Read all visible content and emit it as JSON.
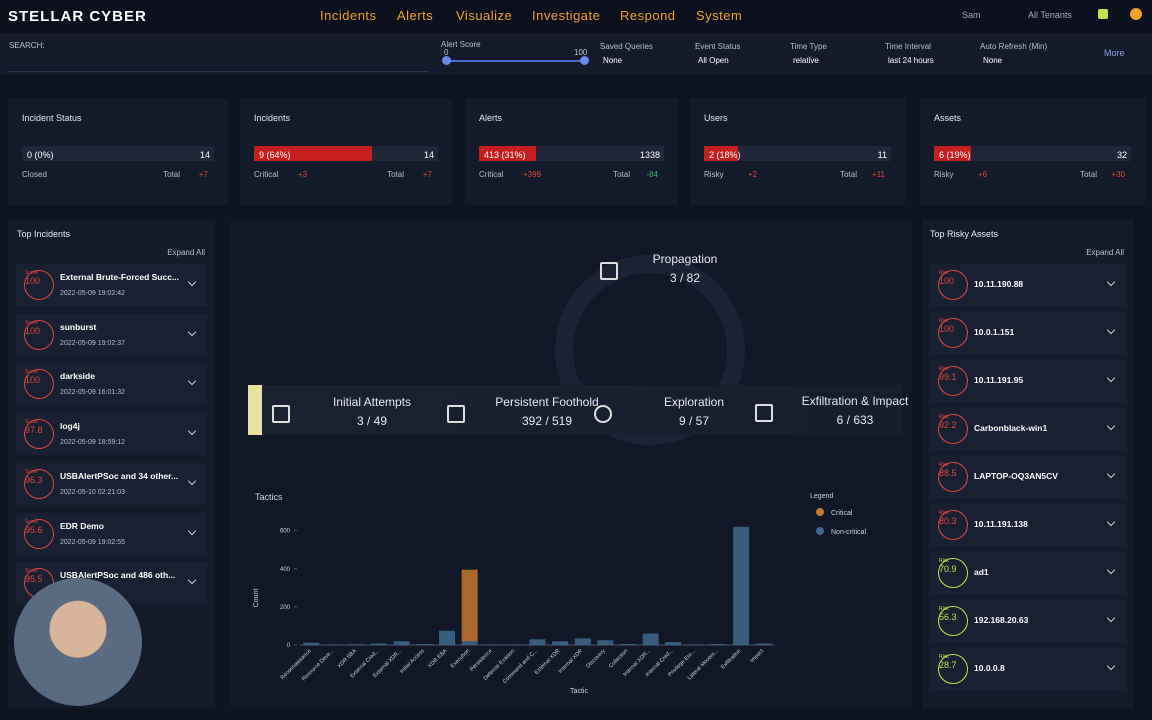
{
  "nav": {
    "logo": "STELLAR CYBER",
    "menu": [
      "Incidents",
      "Alerts",
      "Visualize",
      "Investigate",
      "Respond",
      "System"
    ],
    "user": "Sam",
    "tenants": "All Tenants"
  },
  "filters": {
    "search_label": "SEARCH:",
    "alert_score": {
      "label": "Alert Score",
      "min": 0,
      "max": 100
    },
    "selects": [
      {
        "label": "Saved Queries",
        "value": "None"
      },
      {
        "label": "Event Status",
        "value": "All Open"
      },
      {
        "label": "Time Type",
        "value": "relative"
      },
      {
        "label": "Time Interval",
        "value": "last 24 hours"
      },
      {
        "label": "Auto Refresh (Min)",
        "value": "None"
      }
    ],
    "more": "More"
  },
  "cards": [
    {
      "title": "Incident Status",
      "value_label": "0 (0%)",
      "percent": 0,
      "total": 14,
      "left_label": "Closed",
      "left_delta": null,
      "left_delta_color": null,
      "total_label": "Total",
      "total_delta": "+7",
      "total_delta_color": "#e2483d"
    },
    {
      "title": "Incidents",
      "value_label": "9 (64%)",
      "percent": 64,
      "total": 14,
      "left_label": "Critical",
      "left_delta": "+3",
      "left_delta_color": "#e2483d",
      "total_label": "Total",
      "total_delta": "+7",
      "total_delta_color": "#e2483d"
    },
    {
      "title": "Alerts",
      "value_label": "413 (31%)",
      "percent": 31,
      "total": 1338,
      "left_label": "Critical",
      "left_delta": "+399",
      "left_delta_color": "#e2483d",
      "total_label": "Total",
      "total_delta": "-84",
      "total_delta_color": "#3cb371"
    },
    {
      "title": "Users",
      "value_label": "2 (18%)",
      "percent": 18,
      "total": 11,
      "left_label": "Risky",
      "left_delta": "+2",
      "left_delta_color": "#e2483d",
      "total_label": "Total",
      "total_delta": "+11",
      "total_delta_color": "#e2483d"
    },
    {
      "title": "Assets",
      "value_label": "6 (19%)",
      "percent": 19,
      "total": 32,
      "left_label": "Risky",
      "left_delta": "+6",
      "left_delta_color": "#e2483d",
      "total_label": "Total",
      "total_delta": "+30",
      "total_delta_color": "#e2483d"
    }
  ],
  "top_incidents": {
    "title": "Top Incidents",
    "expand": "Expand All",
    "score_label": "Score",
    "items": [
      {
        "score": 100,
        "name": "External Brute-Forced Succ...",
        "date": "2022-05-09 19:02:42"
      },
      {
        "score": 100,
        "name": "sunburst",
        "date": "2022-05-09 19:02:37"
      },
      {
        "score": 100,
        "name": "darkside",
        "date": "2022-05-09 16:01:32"
      },
      {
        "score": 97.8,
        "name": "log4j",
        "date": "2022-05-09 18:59:12"
      },
      {
        "score": 96.3,
        "name": "USBAlertPSoc and 34 other...",
        "date": "2022-05-10 02:21:03"
      },
      {
        "score": 95.6,
        "name": "EDR Demo",
        "date": "2022-05-09 19:02:55"
      },
      {
        "score": 95.5,
        "name": "USBAlertPSoc and 486 oth...",
        "date": null
      }
    ]
  },
  "killchain": {
    "stages": [
      {
        "name": "Propagation",
        "count": "3 / 82"
      },
      {
        "name": "Initial Attempts",
        "count": "3 / 49"
      },
      {
        "name": "Persistent Foothold",
        "count": "392 / 519"
      },
      {
        "name": "Exploration",
        "count": "9 / 57"
      },
      {
        "name": "Exfiltration & Impact",
        "count": "6 / 633"
      }
    ]
  },
  "chart_data": {
    "type": "bar",
    "title": "Tactics",
    "x_label": "Tactic",
    "y_label": "Count",
    "legend_title": "Legend",
    "categories": [
      "Reconnaissance",
      "Resource Deve...",
      "XDR SBA",
      "External Cred...",
      "External XDR...",
      "Initial Access",
      "XDR EBA",
      "Execution",
      "Persistence",
      "Defense Evasion",
      "Command and C...",
      "External XDR",
      "Internal XDR",
      "Discovery",
      "Collection",
      "Internal XDR...",
      "Internal Cred...",
      "Privilege Esc...",
      "Lateral Movem...",
      "Exfiltration",
      "Impact"
    ],
    "series": [
      {
        "name": "Non-critical",
        "color": "#3d6a8c",
        "values": [
          12,
          3,
          4,
          8,
          20,
          5,
          75,
          20,
          3,
          3,
          30,
          20,
          35,
          25,
          5,
          60,
          15,
          3,
          5,
          620,
          8
        ]
      },
      {
        "name": "Critical",
        "color": "#c8782a",
        "values": [
          0,
          0,
          0,
          0,
          0,
          0,
          0,
          375,
          0,
          0,
          0,
          0,
          0,
          0,
          0,
          0,
          0,
          0,
          0,
          0,
          0
        ]
      }
    ],
    "ylim": [
      0,
      640
    ],
    "yticks": [
      0,
      200,
      400,
      600
    ],
    "stacked": true
  },
  "top_assets": {
    "title": "Top Risky Assets",
    "expand": "Expand All",
    "score_label": "Risk",
    "items": [
      {
        "score": 100,
        "name": "10.11.190.88",
        "color": "#e2483d"
      },
      {
        "score": 100,
        "name": "10.0.1.151",
        "color": "#e2483d"
      },
      {
        "score": 99.1,
        "name": "10.11.191.95",
        "color": "#e2483d"
      },
      {
        "score": 92.2,
        "name": "Carbonblack-win1",
        "color": "#e2483d"
      },
      {
        "score": 88.5,
        "name": "LAPTOP-OQ3AN5CV",
        "color": "#e2483d"
      },
      {
        "score": 80.3,
        "name": "10.11.191.138",
        "color": "#e2483d"
      },
      {
        "score": 70.9,
        "name": "ad1",
        "color": "#c8e04a"
      },
      {
        "score": 56.3,
        "name": "192.168.20.63",
        "color": "#c8e04a"
      },
      {
        "score": 28.7,
        "name": "10.0.0.8",
        "color": "#c8e04a"
      }
    ]
  }
}
